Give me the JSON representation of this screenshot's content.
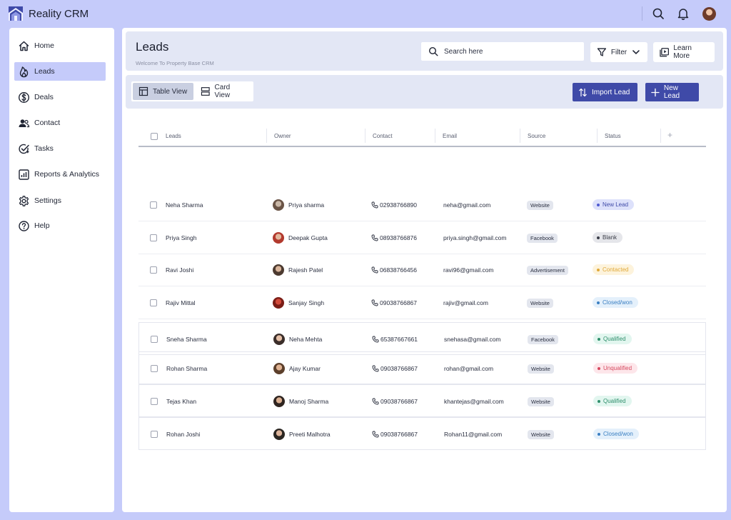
{
  "app": {
    "name": "Reality CRM"
  },
  "sidebar": {
    "items": [
      {
        "label": "Home",
        "icon": "home-icon",
        "active": false
      },
      {
        "label": "Leads",
        "icon": "flame-icon",
        "active": true
      },
      {
        "label": "Deals",
        "icon": "dollar-icon",
        "active": false
      },
      {
        "label": "Contact",
        "icon": "users-icon",
        "active": false
      },
      {
        "label": "Tasks",
        "icon": "task-check-icon",
        "active": false
      },
      {
        "label": "Reports & Analytics",
        "icon": "chart-icon",
        "active": false
      },
      {
        "label": "Settings",
        "icon": "gear-icon",
        "active": false
      },
      {
        "label": "Help",
        "icon": "help-icon",
        "active": false
      }
    ]
  },
  "header": {
    "title": "Leads",
    "subtitle": "Welcome To Property Base CRM",
    "search_placeholder": "Search here",
    "filter_label": "Filter",
    "learn_more_label": "Learn More"
  },
  "views": {
    "table_label": "Table View",
    "card_label": "Card View",
    "active": "table"
  },
  "actions": {
    "import_label": "Import Lead",
    "new_label": "New Lead"
  },
  "table": {
    "columns": [
      "Leads",
      "Owner",
      "Contact",
      "Email",
      "Source",
      "Status"
    ],
    "rows": [
      {
        "lead": "Neha Sharma",
        "owner": "Priya sharma",
        "contact": "02938766890",
        "email": "neha@gmail.com",
        "source": "Website",
        "status": "New Lead",
        "status_kind": "new"
      },
      {
        "lead": "Priya Singh",
        "owner": "Deepak Gupta",
        "contact": "08938766876",
        "email": "priya.singh@gmail.com",
        "source": "Facebook",
        "status": "Blank",
        "status_kind": "blank"
      },
      {
        "lead": "Ravi Joshi",
        "owner": "Rajesh Patel",
        "contact": "06838766456",
        "email": "ravi96@gmail.com",
        "source": "Advertisement",
        "status": "Contacted",
        "status_kind": "contacted"
      },
      {
        "lead": "Rajiv Mittal",
        "owner": "Sanjay Singh",
        "contact": "09038766867",
        "email": "rajiv@gmail.com",
        "source": "Website",
        "status": "Closed/won",
        "status_kind": "closed"
      },
      {
        "lead": "Sneha Sharma",
        "owner": "Neha Mehta",
        "contact": "65387667661",
        "email": "snehasa@gmail.com",
        "source": "Facebook",
        "status": "Qualified",
        "status_kind": "qualified"
      },
      {
        "lead": "Rohan Sharma",
        "owner": "Ajay Kumar",
        "contact": "09038766867",
        "email": "rohan@gmail.com",
        "source": "Website",
        "status": "Unqualified",
        "status_kind": "unqualified"
      },
      {
        "lead": "Tejas Khan",
        "owner": "Manoj Sharma",
        "contact": "09038766867",
        "email": "khantejas@gmail.com",
        "source": "Website",
        "status": "Qualified",
        "status_kind": "qualified"
      },
      {
        "lead": "Rohan Joshi",
        "owner": "Preeti Malhotra",
        "contact": "09038766867",
        "email": "Rohan11@gmail.com",
        "source": "Website",
        "status": "Closed/won",
        "status_kind": "closed"
      }
    ]
  },
  "colors": {
    "page_bg": "#c5cbfa",
    "primary": "#3f4aa8",
    "status_new": "#dde1fb",
    "status_blank": "#e5e6ea",
    "status_contacted": "#fdf3dc",
    "status_closed": "#e4f0fb",
    "status_qualified": "#e2f6ef",
    "status_unqualified": "#fde6ea"
  }
}
